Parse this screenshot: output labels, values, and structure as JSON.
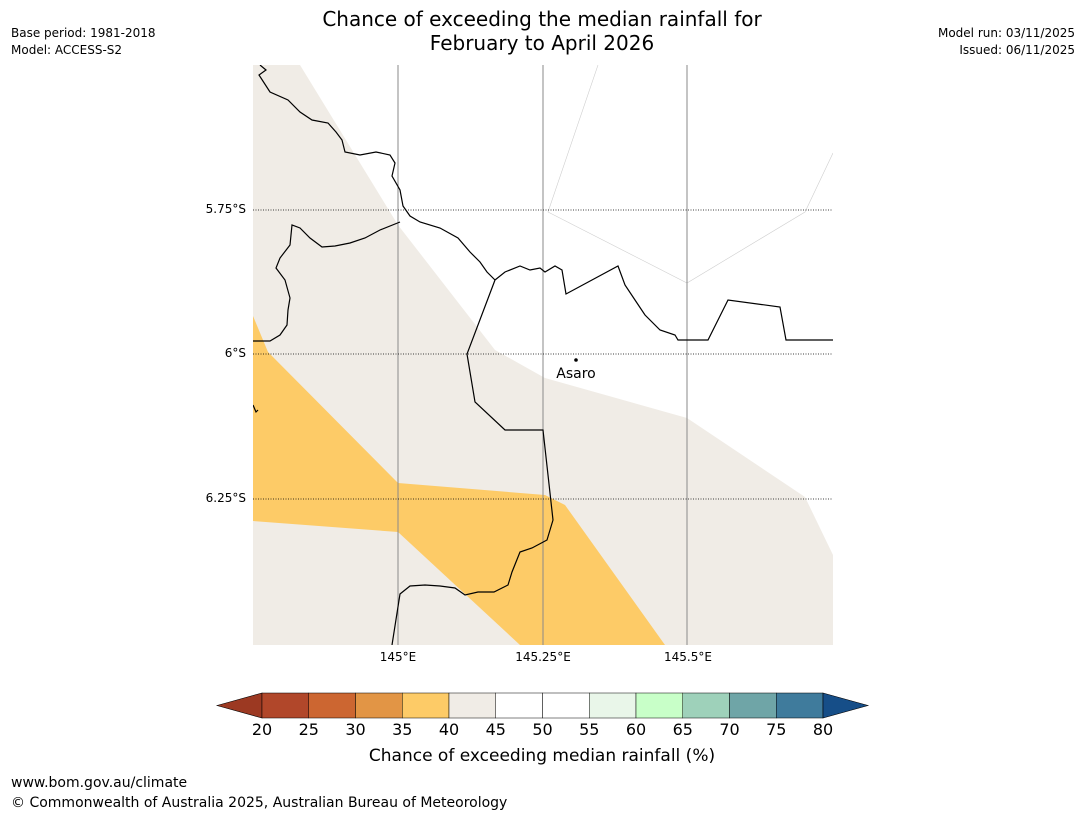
{
  "meta": {
    "base_period": "Base period: 1981-2018",
    "model": "Model: ACCESS-S2",
    "model_run": "Model run: 03/11/2025",
    "issued": "Issued: 06/11/2025"
  },
  "title": {
    "line1": "Chance of exceeding the median rainfall for",
    "line2": "February to April 2026"
  },
  "map": {
    "lat_labels": [
      "5.75°S",
      "6°S",
      "6.25°S"
    ],
    "lon_labels": [
      "145°E",
      "145.25°E",
      "145.5°E"
    ],
    "place_name": "Asaro"
  },
  "legend": {
    "label": "Chance of exceeding median rainfall (%)",
    "ticks": [
      "20",
      "25",
      "30",
      "35",
      "40",
      "45",
      "50",
      "55",
      "60",
      "65",
      "70",
      "75",
      "80"
    ],
    "colors": [
      "#9c3922",
      "#b1472a",
      "#cc6631",
      "#e29545",
      "#fdcb67",
      "#f0ece6",
      "#ffffff",
      "#ffffff",
      "#e9f6e9",
      "#c8ffc8",
      "#9ed1ba",
      "#6fa5a7",
      "#3f7b9c",
      "#164e88"
    ]
  },
  "footer": {
    "url": "www.bom.gov.au/climate",
    "copyright": "© Commonwealth of Australia 2025, Australian Bureau of Meteorology"
  }
}
